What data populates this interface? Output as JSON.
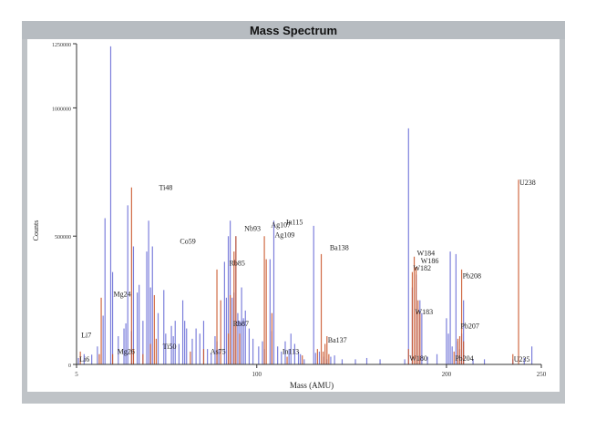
{
  "window": {
    "title": "Mass Spectrum"
  },
  "chart_data": {
    "type": "bar",
    "title": "Mass Spectrum",
    "xlabel": "Mass (AMU)",
    "ylabel": "Counts",
    "xlim": [
      5,
      250
    ],
    "ylim": [
      0,
      1250000
    ],
    "x_ticks": [
      {
        "value": 5,
        "label": "5"
      },
      {
        "value": 100,
        "label": "100"
      },
      {
        "value": 200,
        "label": "200"
      },
      {
        "value": 250,
        "label": "250"
      }
    ],
    "y_ticks": [
      {
        "value": 0,
        "label": "0"
      },
      {
        "value": 500000,
        "label": "500000"
      },
      {
        "value": 1000000,
        "label": "1000000"
      },
      {
        "value": 1250000,
        "label": "1250000"
      }
    ],
    "grid": false,
    "colors": {
      "blue_peaks": "#6e72d8",
      "orange_peaks": "#cc5a30",
      "axis": "#333333"
    },
    "series": [
      {
        "color": "blue",
        "points": [
          [
            6,
            25000
          ],
          [
            9,
            40000
          ],
          [
            13,
            38000
          ],
          [
            16,
            70000
          ],
          [
            19,
            190000
          ],
          [
            20,
            570000
          ],
          [
            23,
            1240000
          ],
          [
            24,
            360000
          ],
          [
            27,
            110000
          ],
          [
            30,
            140000
          ],
          [
            31,
            160000
          ],
          [
            32,
            620000
          ],
          [
            34,
            130000
          ],
          [
            35,
            460000
          ],
          [
            37,
            280000
          ],
          [
            38,
            310000
          ],
          [
            40,
            170000
          ],
          [
            42,
            440000
          ],
          [
            43,
            560000
          ],
          [
            44,
            300000
          ],
          [
            45,
            460000
          ],
          [
            48,
            200000
          ],
          [
            51,
            290000
          ],
          [
            52,
            120000
          ],
          [
            55,
            150000
          ],
          [
            56,
            110000
          ],
          [
            57,
            170000
          ],
          [
            59,
            80000
          ],
          [
            61,
            250000
          ],
          [
            62,
            170000
          ],
          [
            63,
            140000
          ],
          [
            66,
            100000
          ],
          [
            68,
            140000
          ],
          [
            70,
            120000
          ],
          [
            72,
            170000
          ],
          [
            74,
            60000
          ],
          [
            76,
            45000
          ],
          [
            78,
            110000
          ],
          [
            79,
            90000
          ],
          [
            80,
            60000
          ],
          [
            83,
            400000
          ],
          [
            84,
            260000
          ],
          [
            85,
            500000
          ],
          [
            86,
            560000
          ],
          [
            87,
            260000
          ],
          [
            88,
            280000
          ],
          [
            89,
            500000
          ],
          [
            90,
            200000
          ],
          [
            91,
            170000
          ],
          [
            92,
            300000
          ],
          [
            93,
            180000
          ],
          [
            94,
            210000
          ],
          [
            96,
            140000
          ],
          [
            98,
            100000
          ],
          [
            101,
            70000
          ],
          [
            103,
            90000
          ],
          [
            104,
            60000
          ],
          [
            107,
            410000
          ],
          [
            108,
            130000
          ],
          [
            109,
            560000
          ],
          [
            111,
            70000
          ],
          [
            113,
            50000
          ],
          [
            115,
            90000
          ],
          [
            117,
            60000
          ],
          [
            118,
            120000
          ],
          [
            120,
            80000
          ],
          [
            122,
            50000
          ],
          [
            123,
            40000
          ],
          [
            125,
            20000
          ],
          [
            130,
            540000
          ],
          [
            131,
            45000
          ],
          [
            133,
            50000
          ],
          [
            135,
            30000
          ],
          [
            137,
            20000
          ],
          [
            139,
            30000
          ],
          [
            141,
            35000
          ],
          [
            145,
            20000
          ],
          [
            152,
            20000
          ],
          [
            158,
            25000
          ],
          [
            165,
            20000
          ],
          [
            178,
            20000
          ],
          [
            180,
            920000
          ],
          [
            182,
            300000
          ],
          [
            184,
            350000
          ],
          [
            186,
            250000
          ],
          [
            187,
            200000
          ],
          [
            190,
            30000
          ],
          [
            195,
            40000
          ],
          [
            200,
            180000
          ],
          [
            201,
            120000
          ],
          [
            202,
            440000
          ],
          [
            203,
            70000
          ],
          [
            205,
            430000
          ],
          [
            206,
            90000
          ],
          [
            207,
            60000
          ],
          [
            208,
            120000
          ],
          [
            209,
            250000
          ],
          [
            214,
            20000
          ],
          [
            220,
            20000
          ],
          [
            235,
            20000
          ],
          [
            241,
            25000
          ],
          [
            245,
            70000
          ]
        ]
      },
      {
        "color": "orange",
        "points": [
          [
            7,
            50000
          ],
          [
            17,
            40000
          ],
          [
            18,
            260000
          ],
          [
            24,
            40000
          ],
          [
            34,
            690000
          ],
          [
            35,
            60000
          ],
          [
            40,
            40000
          ],
          [
            44,
            80000
          ],
          [
            46,
            270000
          ],
          [
            47,
            100000
          ],
          [
            65,
            50000
          ],
          [
            72,
            60000
          ],
          [
            79,
            370000
          ],
          [
            81,
            250000
          ],
          [
            85,
            120000
          ],
          [
            86,
            270000
          ],
          [
            88,
            440000
          ],
          [
            89,
            500000
          ],
          [
            91,
            120000
          ],
          [
            104,
            500000
          ],
          [
            105,
            410000
          ],
          [
            108,
            200000
          ],
          [
            116,
            30000
          ],
          [
            124,
            35000
          ],
          [
            132,
            60000
          ],
          [
            134,
            430000
          ],
          [
            135,
            50000
          ],
          [
            136,
            80000
          ],
          [
            137,
            110000
          ],
          [
            138,
            40000
          ],
          [
            180,
            60000
          ],
          [
            182,
            360000
          ],
          [
            183,
            420000
          ],
          [
            184,
            380000
          ],
          [
            185,
            250000
          ],
          [
            186,
            200000
          ],
          [
            204,
            50000
          ],
          [
            206,
            100000
          ],
          [
            207,
            110000
          ],
          [
            208,
            370000
          ],
          [
            209,
            90000
          ],
          [
            235,
            40000
          ],
          [
            238,
            720000
          ]
        ]
      }
    ],
    "annotations": [
      {
        "text": "Li7",
        "x": 7,
        "y": 105000
      },
      {
        "text": "Li6",
        "x": 6,
        "y": 10000
      },
      {
        "text": "Mg24",
        "x": 24,
        "y": 265000
      },
      {
        "text": "Mg26",
        "x": 26,
        "y": 40000
      },
      {
        "text": "Ti48",
        "x": 48,
        "y": 680000
      },
      {
        "text": "Ti50",
        "x": 50,
        "y": 60000
      },
      {
        "text": "Co59",
        "x": 59,
        "y": 470000
      },
      {
        "text": "As75",
        "x": 75,
        "y": 40000
      },
      {
        "text": "Rb85",
        "x": 85,
        "y": 385000
      },
      {
        "text": "Rb87",
        "x": 87,
        "y": 150000
      },
      {
        "text": "Nb93",
        "x": 93,
        "y": 520000
      },
      {
        "text": "Ag107",
        "x": 107,
        "y": 535000
      },
      {
        "text": "In115",
        "x": 115,
        "y": 545000
      },
      {
        "text": "Ag109",
        "x": 109,
        "y": 495000
      },
      {
        "text": "In113",
        "x": 113,
        "y": 40000
      },
      {
        "text": "Ba138",
        "x": 138,
        "y": 445000
      },
      {
        "text": "Ba137",
        "x": 137,
        "y": 85000
      },
      {
        "text": "W184",
        "x": 184,
        "y": 425000
      },
      {
        "text": "W186",
        "x": 186,
        "y": 395000
      },
      {
        "text": "W182",
        "x": 182,
        "y": 365000
      },
      {
        "text": "W183",
        "x": 183,
        "y": 195000
      },
      {
        "text": "W180",
        "x": 180,
        "y": 15000
      },
      {
        "text": "Pb208",
        "x": 208,
        "y": 335000
      },
      {
        "text": "Pb207",
        "x": 207,
        "y": 140000
      },
      {
        "text": "Pb204",
        "x": 204,
        "y": 15000
      },
      {
        "text": "U238",
        "x": 238,
        "y": 700000
      },
      {
        "text": "U235",
        "x": 235,
        "y": 10000
      }
    ]
  }
}
